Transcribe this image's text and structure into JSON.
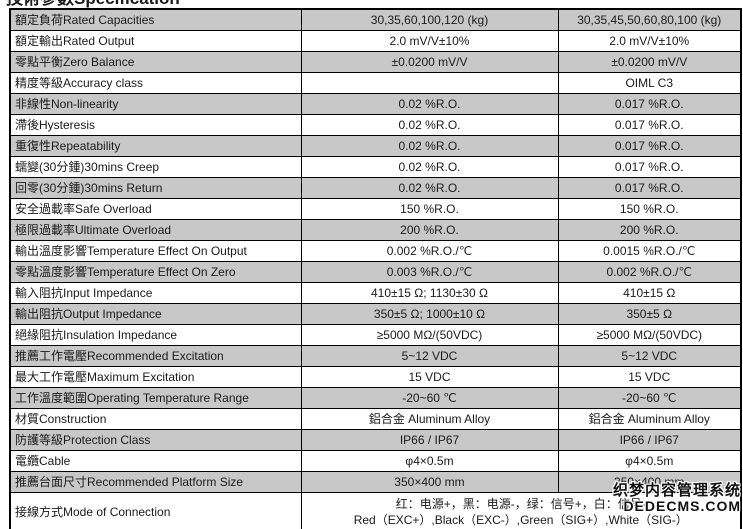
{
  "title": "技術參數Specification",
  "colors": {
    "row_shade": "#c8c8c8",
    "border": "#000000",
    "text": "#1a1a1a"
  },
  "table": {
    "rows": [
      {
        "label": "額定負荷Rated Capacities",
        "col1": "30,35,60,100,120 (kg)",
        "col2": "30,35,45,50,60,80,100 (kg)"
      },
      {
        "label": "額定輸出Rated Output",
        "col1": "2.0 mV/V±10%",
        "col2": "2.0 mV/V±10%"
      },
      {
        "label": "零點平衡Zero Balance",
        "col1": "±0.0200 mV/V",
        "col2": "±0.0200 mV/V"
      },
      {
        "label": "精度等級Accuracy class",
        "col1": "",
        "col2": "OIML C3"
      },
      {
        "label": "非線性Non-linearity",
        "col1": "0.02 %R.O.",
        "col2": "0.017 %R.O."
      },
      {
        "label": "滯後Hysteresis",
        "col1": "0.02 %R.O.",
        "col2": "0.017 %R.O."
      },
      {
        "label": "重復性Repeatability",
        "col1": "0.02 %R.O.",
        "col2": "0.017 %R.O."
      },
      {
        "label": "蠕變(30分鍾)30mins Creep",
        "col1": "0.02 %R.O.",
        "col2": "0.017 %R.O."
      },
      {
        "label": "回零(30分鍾)30mins Return",
        "col1": "0.02 %R.O.",
        "col2": "0.017 %R.O."
      },
      {
        "label": "安全過載率Safe Overload",
        "col1": "150 %R.O.",
        "col2": "150 %R.O."
      },
      {
        "label": "極限過載率Ultimate Overload",
        "col1": "200 %R.O.",
        "col2": "200 %R.O."
      },
      {
        "label": "輸出溫度影響Temperature Effect On Output",
        "col1": "0.002 %R.O./℃",
        "col2": "0.0015 %R.O./℃"
      },
      {
        "label": "零點溫度影響Temperature Effect On Zero",
        "col1": "0.003 %R.O./℃",
        "col2": "0.002 %R.O./℃"
      },
      {
        "label": "輸入阻抗Input Impedance",
        "col1": "410±15 Ω;  1130±30 Ω",
        "col2": "410±15 Ω"
      },
      {
        "label": "輸出阻抗Output Impedance",
        "col1": "350±5 Ω;  1000±10 Ω",
        "col2": "350±5 Ω"
      },
      {
        "label": "絕緣阻抗Insulation Impedance",
        "col1": "≥5000 MΩ/(50VDC)",
        "col2": "≥5000 MΩ/(50VDC)"
      },
      {
        "label": "推薦工作電壓Recommended Excitation",
        "col1": "5~12 VDC",
        "col2": "5~12 VDC"
      },
      {
        "label": "最大工作電壓Maximum Excitation",
        "col1": "15 VDC",
        "col2": "15 VDC"
      },
      {
        "label": "工作溫度範圍Operating Temperature Range",
        "col1": "-20~60 ℃",
        "col2": "-20~60 ℃"
      },
      {
        "label": "材質Construction",
        "col1": "鋁合金 Aluminum Alloy",
        "col2": "鋁合金 Aluminum Alloy"
      },
      {
        "label": "防護等級Protection Class",
        "col1": "IP66 / IP67",
        "col2": "IP66 / IP67"
      },
      {
        "label": "電纜Cable",
        "col1": "φ4×0.5m",
        "col2": "φ4×0.5m"
      },
      {
        "label": "推薦台面尺寸Recommended Platform Size",
        "col1": "350×400 mm",
        "col2": "350×400 mm"
      },
      {
        "label": "接線方式Mode of Connection",
        "merged_line1": "红：电源+，黑：电源-，绿：信号+，白：信号-",
        "merged_line2": "Red（EXC+）,Black（EXC-）,Green（SIG+）,White（SIG-）"
      }
    ]
  },
  "watermark": {
    "line1": "织梦内容管理系统",
    "line2": "DEDECMS.COM"
  }
}
